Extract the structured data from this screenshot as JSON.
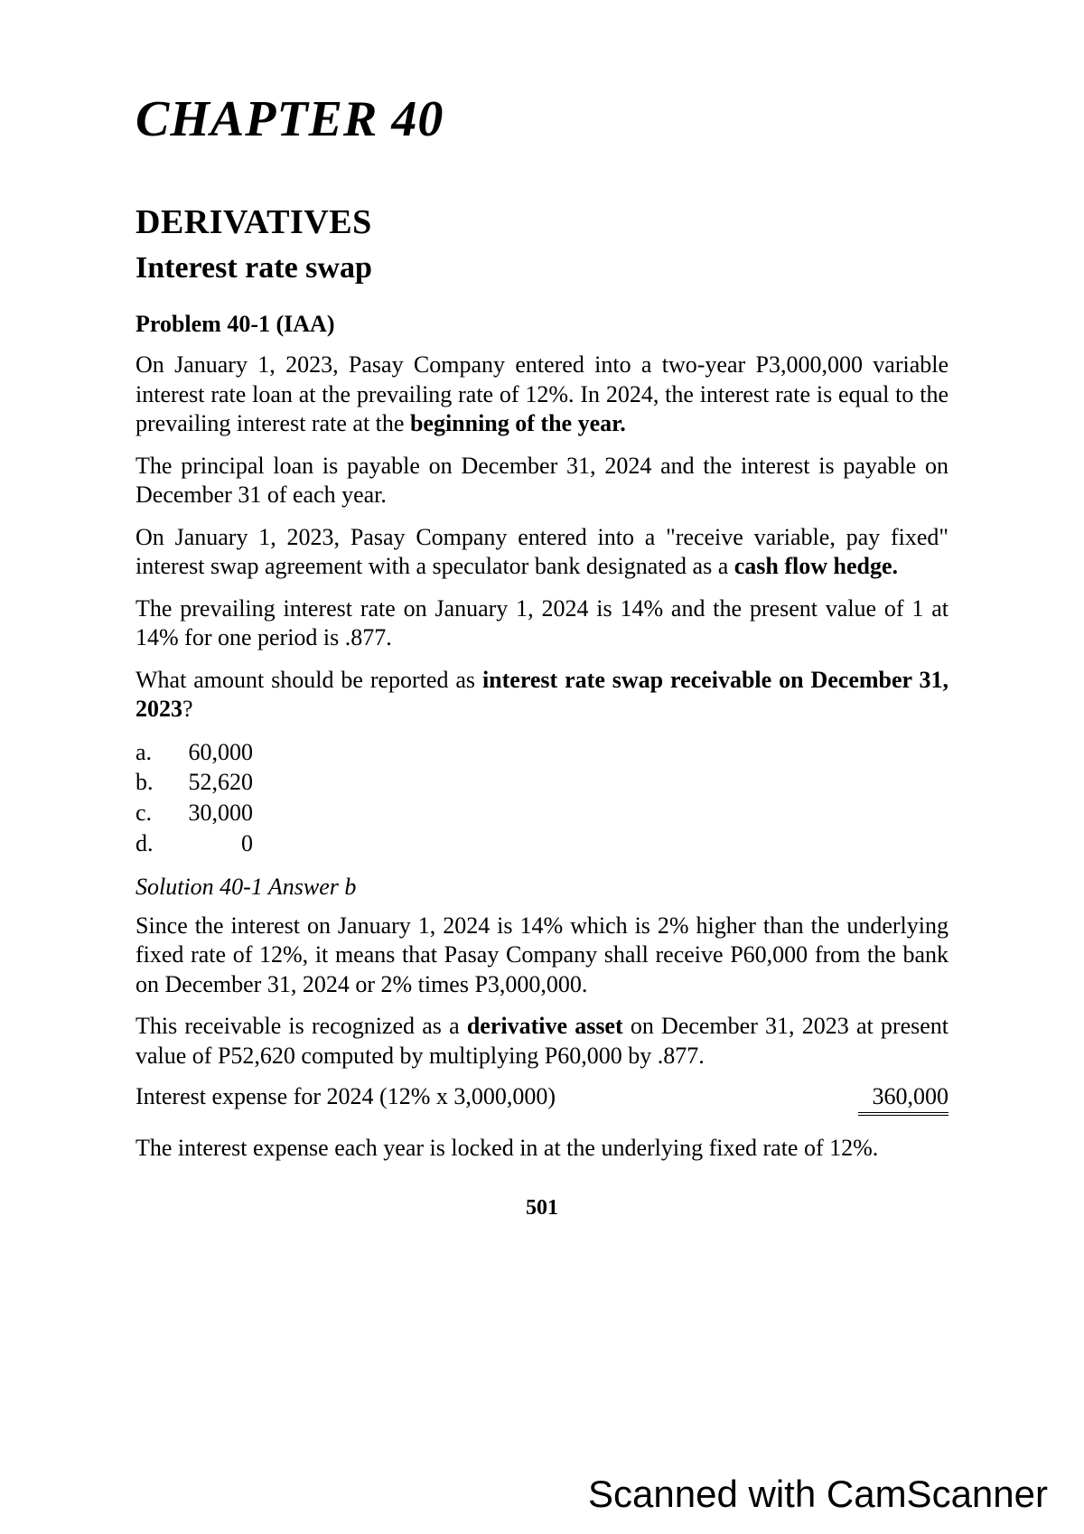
{
  "chapter_title": "CHAPTER 40",
  "section_title": "DERIVATIVES",
  "subsection_title": "Interest rate swap",
  "problem_label": "Problem 40-1 (IAA)",
  "para1_a": "On January 1, 2023, Pasay Company entered into a two-year P3,000,000 variable interest rate loan at the prevailing rate of 12%. In 2024, the interest rate is equal to the prevailing interest rate at the ",
  "para1_b": "beginning of the year.",
  "para2": "The principal loan is payable on December 31, 2024 and the interest is payable on December 31 of each year.",
  "para3_a": "On January 1, 2023, Pasay Company entered into a \"receive variable, pay fixed\" interest swap agreement with a speculator bank designated as a ",
  "para3_b": "cash flow hedge.",
  "para4": "The prevailing interest rate on January 1, 2024 is 14% and the present value of 1 at 14% for one period is .877.",
  "para5_a": "What amount should be reported as ",
  "para5_b": "interest rate swap receivable on December 31, 2023",
  "para5_c": "?",
  "options": {
    "a": {
      "letter": "a.",
      "value": "60,000"
    },
    "b": {
      "letter": "b.",
      "value": "52,620"
    },
    "c": {
      "letter": "c.",
      "value": "30,000"
    },
    "d": {
      "letter": "d.",
      "value": "0"
    }
  },
  "solution_label": "Solution 40-1 Answer b",
  "sol1": "Since the interest on January 1, 2024 is 14% which is 2% higher than the underlying fixed rate of 12%, it means that Pasay Company shall receive P60,000 from the bank on December 31, 2024 or 2% times P3,000,000.",
  "sol2_a": "This receivable is recognized as a ",
  "sol2_b": "derivative asset",
  "sol2_c": " on December 31, 2023 at present value of P52,620 computed by multiplying P60,000 by .877.",
  "calc_label_a": "Interest expense for ",
  "calc_label_b": "2024",
  "calc_label_c": " (12% x 3,000,000)",
  "calc_value": "360,000",
  "sol3": "The interest expense each year is locked in at the underlying fixed rate of 12%.",
  "page_num": "501",
  "watermark": "Scanned with CamScanner"
}
